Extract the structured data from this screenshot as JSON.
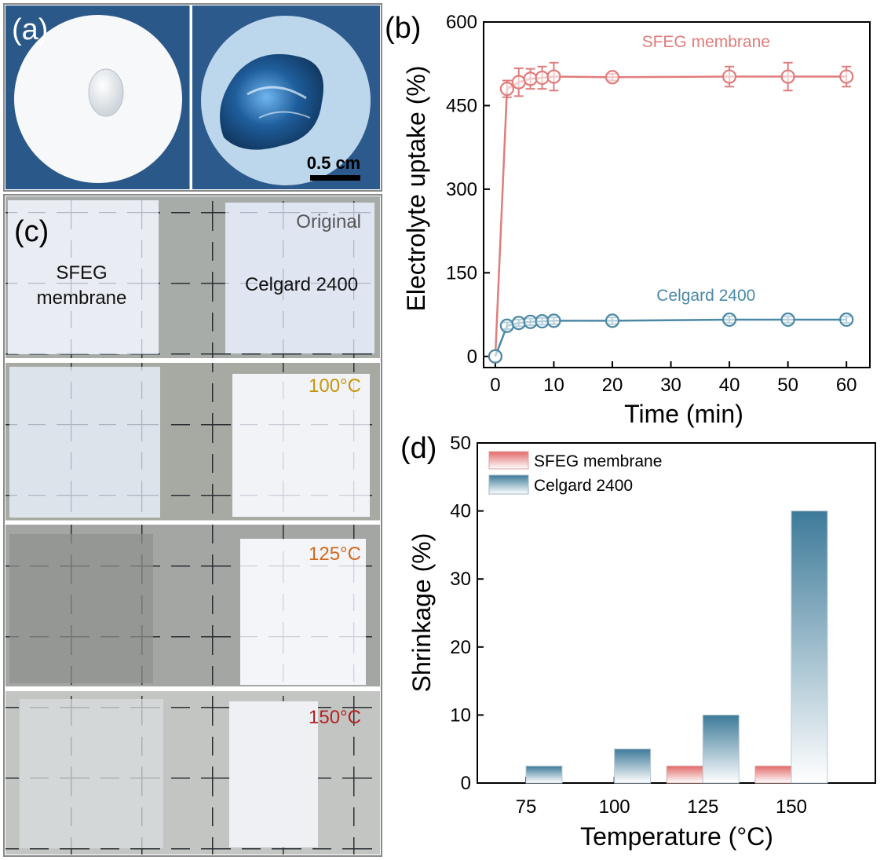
{
  "panel_a": {
    "label": "(a)",
    "scale_bar": "0.5 cm"
  },
  "panel_c": {
    "label": "(c)",
    "rows": [
      {
        "condition": "Original",
        "left_label_line1": "SFEG",
        "left_label_line2": "membrane",
        "right_label": "Celgard 2400",
        "color": "#555555"
      },
      {
        "condition": "100°C",
        "color": "#c8960a"
      },
      {
        "condition": "125°C",
        "color": "#d2691e"
      },
      {
        "condition": "150°C",
        "color": "#b22222"
      }
    ]
  },
  "colors": {
    "sfeg": "#e07c7c",
    "celgard": "#4a88a6",
    "sfeg_bar_top": "#e26a6a",
    "celgard_bar_top": "#3d7a99"
  },
  "chart_data": [
    {
      "panel": "(b)",
      "type": "line",
      "xlabel": "Time (min)",
      "ylabel": "Electrolyte uptake (%)",
      "xlim": [
        -2,
        64
      ],
      "ylim": [
        -20,
        600
      ],
      "xticks": [
        0,
        10,
        20,
        30,
        40,
        50,
        60
      ],
      "yticks": [
        0,
        150,
        300,
        450,
        600
      ],
      "grid": false,
      "series": [
        {
          "name": "SFEG membrane",
          "x": [
            0,
            2,
            4,
            6,
            8,
            10,
            20,
            40,
            50,
            60
          ],
          "y": [
            0,
            480,
            492,
            498,
            500,
            502,
            501,
            502,
            502,
            502
          ],
          "err": [
            0,
            15,
            25,
            18,
            20,
            25,
            6,
            18,
            25,
            18
          ]
        },
        {
          "name": "Celgard 2400",
          "x": [
            0,
            2,
            4,
            6,
            8,
            10,
            20,
            40,
            50,
            60
          ],
          "y": [
            0,
            55,
            60,
            62,
            63,
            64,
            64,
            66,
            66,
            66
          ],
          "err": [
            0,
            6,
            6,
            6,
            6,
            6,
            6,
            6,
            6,
            6
          ]
        }
      ]
    },
    {
      "panel": "(d)",
      "type": "bar",
      "xlabel": "Temperature (°C)",
      "ylabel": "Shrinkage (%)",
      "ylim": [
        0,
        50
      ],
      "yticks": [
        0,
        10,
        20,
        30,
        40,
        50
      ],
      "categories": [
        "75",
        "100",
        "125",
        "150"
      ],
      "legend_position": "top-left",
      "series": [
        {
          "name": "SFEG membrane",
          "values": [
            0,
            0,
            2.5,
            2.5
          ]
        },
        {
          "name": "Celgard 2400",
          "values": [
            2.5,
            5,
            10,
            40
          ]
        }
      ]
    }
  ]
}
